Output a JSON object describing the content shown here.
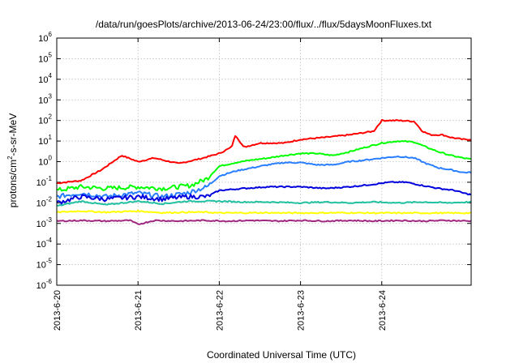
{
  "chart_data": {
    "type": "line",
    "title": "/data/run/goesPlots/archive/2013-06-24/23:00/flux/../flux/5daysMoonFluxes.txt",
    "xlabel": "Coordinated Universal Time (UTC)",
    "ylabel": "protons/cm²-s-sr-MeV",
    "ylabel_parts": [
      "protons/cm",
      "2",
      "-s-sr-MeV"
    ],
    "yscale": "log",
    "ylim_exp": [
      -6,
      6
    ],
    "xlim_days": [
      0,
      5.1
    ],
    "x_ticks": [
      "2013-6-20",
      "2013-6-21",
      "2013-6-22",
      "2013-6-23",
      "2013-6-24"
    ],
    "y_ticks": [
      {
        "base": "10",
        "exp": "-6"
      },
      {
        "base": "10",
        "exp": "-5"
      },
      {
        "base": "10",
        "exp": "-4"
      },
      {
        "base": "10",
        "exp": "-3"
      },
      {
        "base": "10",
        "exp": "-2"
      },
      {
        "base": "10",
        "exp": "-1"
      },
      {
        "base": "10",
        "exp": "0"
      },
      {
        "base": "10",
        "exp": "1"
      },
      {
        "base": "10",
        "exp": "2"
      },
      {
        "base": "10",
        "exp": "3"
      },
      {
        "base": "10",
        "exp": "4"
      },
      {
        "base": "10",
        "exp": "5"
      },
      {
        "base": "10",
        "exp": "6"
      }
    ],
    "grid": true,
    "series": [
      {
        "color": "#ff0000",
        "x": [
          0,
          0.3,
          0.55,
          0.8,
          1.0,
          1.2,
          1.5,
          1.8,
          2.0,
          2.15,
          2.2,
          2.3,
          2.5,
          2.8,
          3.0,
          3.3,
          3.6,
          3.9,
          4.0,
          4.2,
          4.4,
          4.5,
          4.6,
          4.75,
          4.85,
          5.0,
          5.1
        ],
        "y": [
          0.09,
          0.12,
          0.4,
          2.0,
          1.0,
          1.5,
          0.8,
          1.5,
          2.5,
          5,
          20,
          5,
          8,
          8,
          12,
          15,
          20,
          30,
          100,
          100,
          90,
          30,
          20,
          20,
          15,
          12,
          12
        ]
      },
      {
        "color": "#00ff00",
        "x": [
          0,
          0.3,
          0.6,
          1.0,
          1.3,
          1.5,
          1.65,
          1.85,
          2.0,
          2.2,
          2.4,
          2.6,
          2.8,
          3.0,
          3.2,
          3.4,
          3.6,
          3.8,
          4.0,
          4.2,
          4.4,
          4.55,
          4.7,
          4.85,
          5.0,
          5.1
        ],
        "y": [
          0.04,
          0.06,
          0.05,
          0.06,
          0.05,
          0.06,
          0.07,
          0.15,
          0.6,
          0.9,
          1.2,
          1.5,
          2,
          2.5,
          2.5,
          2,
          3,
          5,
          8,
          10,
          9,
          5,
          3,
          2,
          1.5,
          1.3
        ]
      },
      {
        "color": "#2a7fff",
        "x": [
          0,
          0.3,
          0.6,
          1.0,
          1.3,
          1.6,
          1.85,
          2.0,
          2.2,
          2.4,
          2.6,
          2.8,
          3.0,
          3.2,
          3.4,
          3.6,
          3.8,
          4.0,
          4.2,
          4.4,
          4.55,
          4.7,
          4.85,
          5.0,
          5.1
        ],
        "y": [
          0.02,
          0.03,
          0.02,
          0.03,
          0.02,
          0.03,
          0.06,
          0.2,
          0.35,
          0.5,
          0.7,
          0.9,
          0.9,
          0.7,
          0.7,
          1.0,
          1.2,
          1.5,
          1.8,
          1.5,
          0.8,
          0.5,
          0.4,
          0.3,
          0.3
        ]
      },
      {
        "color": "#0000dd",
        "x": [
          0,
          0.3,
          0.6,
          1.0,
          1.3,
          1.6,
          1.85,
          2.0,
          2.3,
          2.6,
          3.0,
          3.3,
          3.6,
          3.9,
          4.1,
          4.3,
          4.5,
          4.7,
          4.9,
          5.0,
          5.1
        ],
        "y": [
          0.01,
          0.02,
          0.015,
          0.02,
          0.015,
          0.02,
          0.02,
          0.04,
          0.05,
          0.06,
          0.06,
          0.05,
          0.06,
          0.08,
          0.1,
          0.1,
          0.07,
          0.05,
          0.04,
          0.03,
          0.025
        ]
      },
      {
        "color": "#20c0a0",
        "x": [
          0,
          0.3,
          0.6,
          1.0,
          1.3,
          1.6,
          1.85,
          2.0,
          2.3,
          2.6,
          3.0,
          3.3,
          3.6,
          3.9,
          4.2,
          4.5,
          4.8,
          5.1
        ],
        "y": [
          0.007,
          0.012,
          0.008,
          0.012,
          0.009,
          0.012,
          0.012,
          0.012,
          0.011,
          0.011,
          0.01,
          0.011,
          0.01,
          0.011,
          0.01,
          0.011,
          0.01,
          0.011
        ]
      },
      {
        "color": "#ffff00",
        "x": [
          0,
          0.3,
          0.6,
          1.0,
          1.3,
          1.6,
          1.85,
          2.0,
          2.5,
          3.0,
          3.5,
          4.0,
          4.5,
          5.1
        ],
        "y": [
          0.0035,
          0.004,
          0.0035,
          0.004,
          0.0033,
          0.0035,
          0.0035,
          0.0032,
          0.0033,
          0.0032,
          0.0033,
          0.0032,
          0.0032,
          0.0032
        ]
      },
      {
        "color": "#a02880",
        "x": [
          0,
          0.3,
          0.6,
          0.9,
          1.0,
          1.2,
          1.5,
          1.8,
          2.1,
          2.4,
          2.7,
          3.0,
          3.3,
          3.6,
          3.9,
          4.2,
          4.5,
          4.8,
          5.1
        ],
        "y": [
          0.0013,
          0.0014,
          0.0013,
          0.0014,
          0.0009,
          0.0014,
          0.0013,
          0.0014,
          0.0013,
          0.0014,
          0.0013,
          0.0014,
          0.0013,
          0.0014,
          0.0013,
          0.0014,
          0.0013,
          0.0014,
          0.0013
        ]
      }
    ]
  }
}
